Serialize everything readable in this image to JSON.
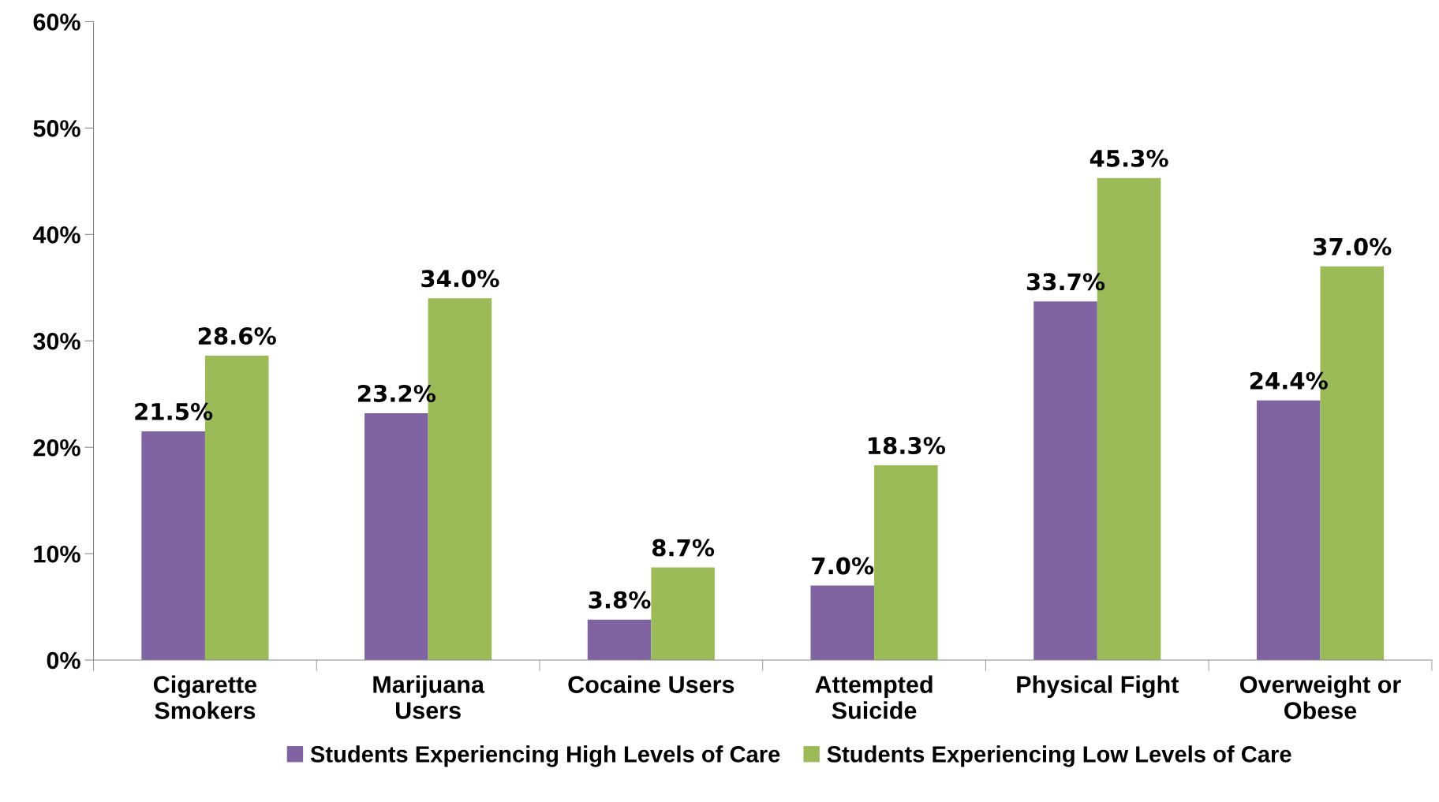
{
  "chart_data": {
    "type": "bar",
    "categories": [
      "Cigarette\nSmokers",
      "Marijuana\nUsers",
      "Cocaine Users",
      "Attempted\nSuicide",
      "Physical Fight",
      "Overweight or\nObese"
    ],
    "series": [
      {
        "name": "Students Experiencing High Levels of Care",
        "color": "#8064a2",
        "values": [
          21.5,
          23.2,
          3.8,
          7.0,
          33.7,
          24.4
        ],
        "value_labels": [
          "21.5%",
          "23.2%",
          "3.8%",
          "7.0%",
          "33.7%",
          "24.4%"
        ]
      },
      {
        "name": "Students Experiencing Low Levels of Care",
        "color": "#9bbb59",
        "values": [
          28.6,
          34.0,
          8.7,
          18.3,
          45.3,
          37.0
        ],
        "value_labels": [
          "28.6%",
          "34.0%",
          "8.7%",
          "18.3%",
          "45.3%",
          "37.0%"
        ]
      }
    ],
    "ylim": [
      0,
      60
    ],
    "yticks": [
      {
        "value": 0,
        "label": "0%"
      },
      {
        "value": 10,
        "label": "10%"
      },
      {
        "value": 20,
        "label": "20%"
      },
      {
        "value": 30,
        "label": "30%"
      },
      {
        "value": 40,
        "label": "40%"
      },
      {
        "value": 50,
        "label": "50%"
      },
      {
        "value": 60,
        "label": "60%"
      }
    ],
    "grid": false,
    "legend": "bottom"
  }
}
